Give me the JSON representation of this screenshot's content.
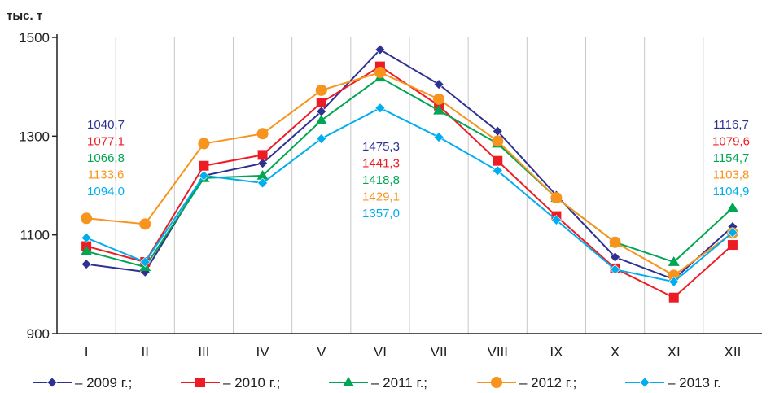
{
  "chart_data": {
    "type": "line",
    "title": "",
    "ylabel": "тыс. т",
    "xlabel": "",
    "ylim": [
      900,
      1500
    ],
    "yticks": [
      900,
      1100,
      1300,
      1500
    ],
    "categories": [
      "I",
      "II",
      "III",
      "IV",
      "V",
      "VI",
      "VII",
      "VIII",
      "IX",
      "X",
      "XI",
      "XII"
    ],
    "grid": "vertical-only",
    "legend_position": "bottom",
    "series": [
      {
        "name": "– 2009 г.;",
        "color": "#2e3192",
        "marker": "diamond",
        "values": [
          1040.7,
          1025,
          1220,
          1245,
          1350,
          1475.3,
          1405,
          1310,
          1180,
          1055,
          1010,
          1116.7
        ]
      },
      {
        "name": "– 2010 г.;",
        "color": "#ed1c24",
        "marker": "square",
        "values": [
          1077.1,
          1045,
          1240,
          1262,
          1368,
          1441.3,
          1362,
          1250,
          1138,
          1032,
          973,
          1079.6
        ]
      },
      {
        "name": "– 2011 г.;",
        "color": "#00a651",
        "marker": "triangle",
        "values": [
          1066.8,
          1035,
          1215,
          1220,
          1332,
          1418.8,
          1352,
          1285,
          1175,
          1085,
          1045,
          1154.7
        ]
      },
      {
        "name": "– 2012 г.;",
        "color": "#f7941d",
        "marker": "circle",
        "values": [
          1133.6,
          1122,
          1285,
          1305,
          1393,
          1429.1,
          1375,
          1290,
          1175,
          1085,
          1018,
          1103.8
        ]
      },
      {
        "name": "– 2013 г.",
        "color": "#00aeef",
        "marker": "diamond",
        "values": [
          1094.0,
          1045,
          1220,
          1205,
          1295,
          1357.0,
          1298,
          1230,
          1130,
          1030,
          1005,
          1104.9
        ]
      }
    ],
    "annotations": [
      {
        "month": "I",
        "labels": [
          "1040,7",
          "1077,1",
          "1066,8",
          "1133,6",
          "1094,0"
        ]
      },
      {
        "month": "VI",
        "labels": [
          "1475,3",
          "1441,3",
          "1418,8",
          "1429,1",
          "1357,0"
        ]
      },
      {
        "month": "XII",
        "labels": [
          "1116,7",
          "1079,6",
          "1154,7",
          "1103,8",
          "1104,9"
        ]
      }
    ]
  }
}
